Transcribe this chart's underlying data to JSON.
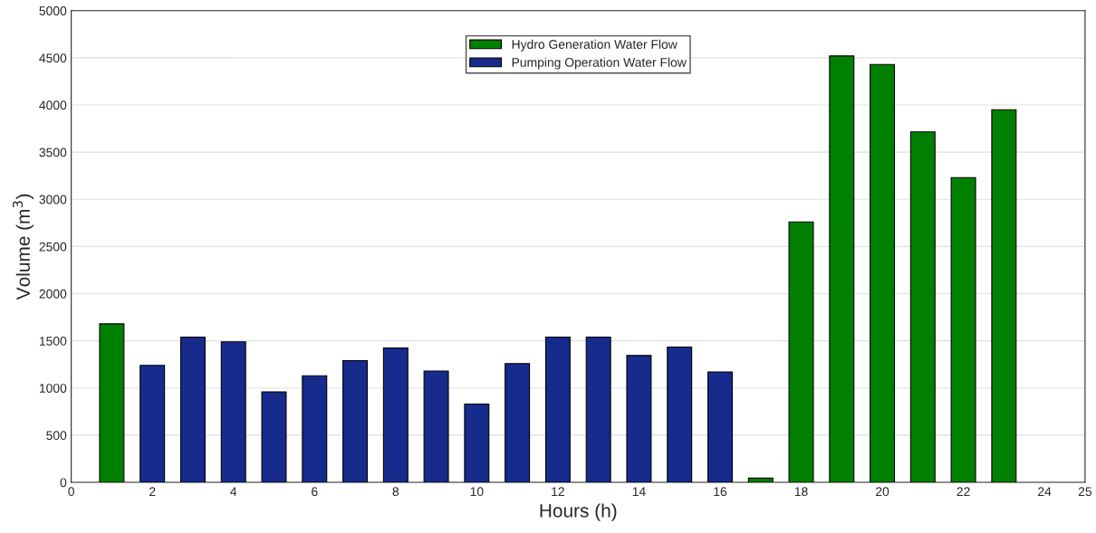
{
  "chart_data": {
    "type": "bar",
    "xlabel": "Hours (h)",
    "ylabel": "Volume (m$^{3}$)",
    "series": [
      {
        "name": "Hydro Generation Water Flow",
        "color": "#008000",
        "x": [
          1,
          17,
          18,
          19,
          20,
          21,
          22,
          23
        ],
        "values": [
          1680,
          45,
          2760,
          4520,
          4430,
          3715,
          3230,
          3950
        ]
      },
      {
        "name": "Pumping Operation Water Flow",
        "color": "#172b8c",
        "x": [
          2,
          3,
          4,
          5,
          6,
          7,
          8,
          9,
          10,
          11,
          12,
          13,
          14,
          15,
          16
        ],
        "values": [
          1240,
          1540,
          1490,
          960,
          1130,
          1290,
          1425,
          1180,
          830,
          1260,
          1540,
          1540,
          1345,
          1435,
          1170
        ]
      }
    ],
    "xlim": [
      0,
      25
    ],
    "xticks": [
      0,
      2,
      4,
      6,
      8,
      10,
      12,
      14,
      16,
      18,
      20,
      22,
      24,
      25
    ],
    "ylim": [
      0,
      5000
    ],
    "yticks": [
      0,
      500,
      1000,
      1500,
      2000,
      2500,
      3000,
      3500,
      4000,
      4500,
      5000
    ],
    "grid": "y",
    "legend": "top"
  }
}
